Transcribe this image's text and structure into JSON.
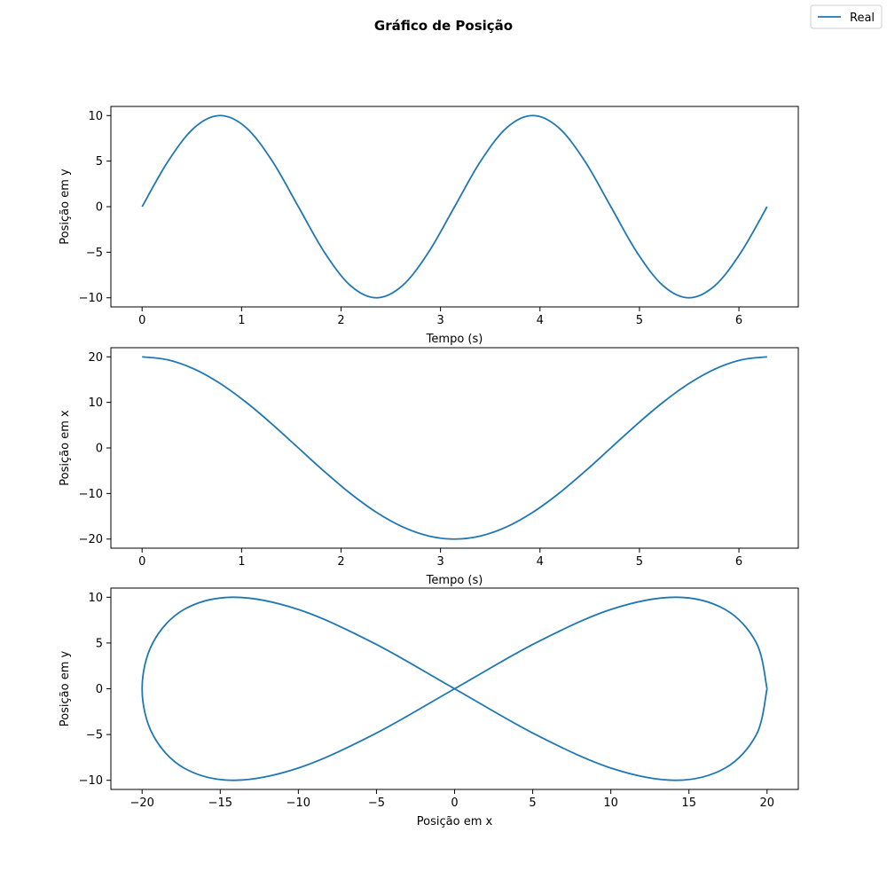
{
  "figure": {
    "title": "Gráfico de Posição",
    "legend": {
      "label": "Real",
      "placement": "top-right",
      "color": "#1f77b4"
    }
  },
  "chart_data": [
    {
      "type": "line",
      "title": "",
      "xlabel": "Tempo (s)",
      "ylabel": "Posição em y",
      "xlim": [
        -0.314,
        6.597
      ],
      "ylim": [
        -11,
        11
      ],
      "xticks": [
        0,
        1,
        2,
        3,
        4,
        5,
        6
      ],
      "xtick_labels": [
        "0",
        "1",
        "2",
        "3",
        "4",
        "5",
        "6"
      ],
      "yticks": [
        -10,
        -5,
        0,
        5,
        10
      ],
      "ytick_labels": [
        "−10",
        "−5",
        "0",
        "5",
        "10"
      ],
      "series": [
        {
          "name": "Real",
          "color": "#1f77b4",
          "x": [
            0,
            0.2618,
            0.5236,
            0.7854,
            1.0472,
            1.309,
            1.5708,
            1.8326,
            2.0944,
            2.3562,
            2.618,
            2.8798,
            3.1416,
            3.4034,
            3.6652,
            3.927,
            4.1888,
            4.4506,
            4.7124,
            4.9742,
            5.236,
            5.4978,
            5.7596,
            6.0214,
            6.2832
          ],
          "y": [
            0,
            5.0,
            8.66,
            10.0,
            8.66,
            5.0,
            0,
            -5.0,
            -8.66,
            -10.0,
            -8.66,
            -5.0,
            0,
            5.0,
            8.66,
            10.0,
            8.66,
            5.0,
            0,
            -5.0,
            -8.66,
            -10.0,
            -8.66,
            -5.0,
            0
          ]
        }
      ]
    },
    {
      "type": "line",
      "title": "",
      "xlabel": "Tempo (s)",
      "ylabel": "Posição em x",
      "xlim": [
        -0.314,
        6.597
      ],
      "ylim": [
        -22,
        22
      ],
      "xticks": [
        0,
        1,
        2,
        3,
        4,
        5,
        6
      ],
      "xtick_labels": [
        "0",
        "1",
        "2",
        "3",
        "4",
        "5",
        "6"
      ],
      "yticks": [
        -20,
        -10,
        0,
        10,
        20
      ],
      "ytick_labels": [
        "−20",
        "−10",
        "0",
        "10",
        "20"
      ],
      "series": [
        {
          "name": "Real",
          "color": "#1f77b4",
          "x": [
            0,
            0.2618,
            0.5236,
            0.7854,
            1.0472,
            1.309,
            1.5708,
            1.8326,
            2.0944,
            2.3562,
            2.618,
            2.8798,
            3.1416,
            3.4034,
            3.6652,
            3.927,
            4.1888,
            4.4506,
            4.7124,
            4.9742,
            5.236,
            5.4978,
            5.7596,
            6.0214,
            6.2832
          ],
          "y": [
            20.0,
            19.32,
            17.32,
            14.14,
            10.0,
            5.18,
            0,
            -5.18,
            -10.0,
            -14.14,
            -17.32,
            -19.32,
            -20.0,
            -19.32,
            -17.32,
            -14.14,
            -10.0,
            -5.18,
            0,
            5.18,
            10.0,
            14.14,
            17.32,
            19.32,
            20.0
          ]
        }
      ]
    },
    {
      "type": "line",
      "title": "",
      "xlabel": "Posição em x",
      "ylabel": "Posição em y",
      "xlim": [
        -22,
        22
      ],
      "ylim": [
        -11,
        11
      ],
      "xticks": [
        -20,
        -15,
        -10,
        -5,
        0,
        5,
        10,
        15,
        20
      ],
      "xtick_labels": [
        "−20",
        "−15",
        "−10",
        "−5",
        "0",
        "5",
        "10",
        "15",
        "20"
      ],
      "yticks": [
        -10,
        -5,
        0,
        5,
        10
      ],
      "ytick_labels": [
        "−10",
        "−5",
        "0",
        "5",
        "10"
      ],
      "series": [
        {
          "name": "Real",
          "color": "#1f77b4",
          "x": [
            20.0,
            19.32,
            17.32,
            14.14,
            10.0,
            5.18,
            0,
            -5.18,
            -10.0,
            -14.14,
            -17.32,
            -19.32,
            -20.0,
            -19.32,
            -17.32,
            -14.14,
            -10.0,
            -5.18,
            0,
            5.18,
            10.0,
            14.14,
            17.32,
            19.32,
            20.0
          ],
          "y": [
            0,
            5.0,
            8.66,
            10.0,
            8.66,
            5.0,
            0,
            -5.0,
            -8.66,
            -10.0,
            -8.66,
            -5.0,
            0,
            5.0,
            8.66,
            10.0,
            8.66,
            5.0,
            0,
            -5.0,
            -8.66,
            -10.0,
            -8.66,
            -5.0,
            0
          ]
        }
      ]
    }
  ]
}
